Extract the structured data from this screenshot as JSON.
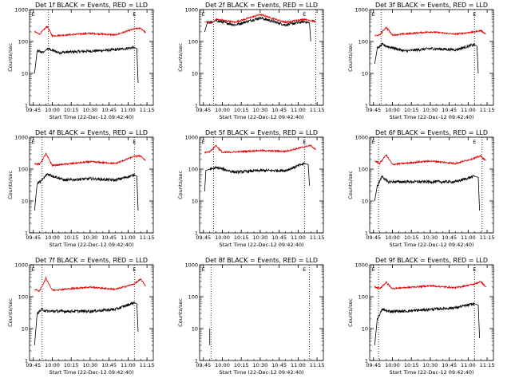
{
  "figure": {
    "background": "#ffffff",
    "colors": {
      "events": "#000000",
      "lld": "#e00000",
      "axes": "#000000"
    }
  },
  "chart_data": [
    {
      "type": "line",
      "title": "Det 1f BLACK = Events, RED = LLD",
      "xlabel": "Start Time (22-Dec-12 09:42:40)",
      "ylabel": "Counts/sec",
      "yscale": "log",
      "ylim": [
        1,
        1000
      ],
      "x_ticks": [
        "09:45",
        "10:00",
        "10:15",
        "10:30",
        "10:45",
        "11:00",
        "11:15"
      ],
      "y_ticks": [
        "1",
        "10",
        "100",
        "1000"
      ],
      "vlines": [
        "09:57",
        "11:05"
      ],
      "markers": [
        "E",
        "E"
      ],
      "series": [
        {
          "x": [
            "09:46",
            "09:48",
            "09:53",
            "09:56",
            "10:05",
            "10:30",
            "10:50",
            "11:05",
            "11:07",
            "11:08"
          ],
          "values": [
            10,
            50,
            45,
            60,
            45,
            50,
            55,
            65,
            60,
            5
          ]
        },
        {
          "x": [
            "09:46",
            "09:50",
            "09:56",
            "10:00",
            "10:30",
            "10:50",
            "11:05",
            "11:10",
            "11:14"
          ],
          "values": [
            200,
            170,
            300,
            150,
            180,
            160,
            250,
            260,
            190
          ]
        }
      ]
    },
    {
      "type": "line",
      "title": "Det 2f BLACK = Events, RED = LLD",
      "xlabel": "Start Time (22-Dec-12 09:42:40)",
      "ylabel": "Counts/sec",
      "yscale": "log",
      "ylim": [
        1,
        1000
      ],
      "x_ticks": [
        "09:45",
        "10:00",
        "10:15",
        "10:30",
        "10:45",
        "11:00",
        "11:15"
      ],
      "y_ticks": [
        "1",
        "10",
        "100",
        "1000"
      ],
      "vlines": [
        "09:53",
        "11:14"
      ],
      "markers": [
        "E",
        "E"
      ],
      "series": [
        {
          "x": [
            "09:46",
            "09:48",
            "09:52",
            "09:55",
            "10:10",
            "10:30",
            "10:50",
            "11:05",
            "11:09",
            "11:10"
          ],
          "values": [
            200,
            380,
            400,
            450,
            330,
            550,
            330,
            420,
            380,
            100
          ]
        },
        {
          "x": [
            "09:46",
            "09:48",
            "09:52",
            "09:55",
            "10:10",
            "10:30",
            "10:50",
            "11:05",
            "11:14"
          ],
          "values": [
            400,
            420,
            380,
            500,
            400,
            700,
            400,
            500,
            420
          ]
        }
      ]
    },
    {
      "type": "line",
      "title": "Det 3f BLACK = Events, RED = LLD",
      "xlabel": "Start Time (22-Dec-12 09:42:40)",
      "ylabel": "Counts/sec",
      "yscale": "log",
      "ylim": [
        1,
        1000
      ],
      "x_ticks": [
        "09:45",
        "10:00",
        "10:15",
        "10:30",
        "10:45",
        "11:00",
        "11:15"
      ],
      "y_ticks": [
        "1",
        "10",
        "100",
        "1000"
      ],
      "vlines": [
        "09:51",
        "11:05"
      ],
      "markers": [
        "E",
        "E"
      ],
      "series": [
        {
          "x": [
            "09:46",
            "09:48",
            "09:52",
            "09:56",
            "10:10",
            "10:30",
            "10:50",
            "11:05",
            "11:07",
            "11:08"
          ],
          "values": [
            20,
            60,
            80,
            70,
            50,
            60,
            55,
            80,
            70,
            10
          ]
        },
        {
          "x": [
            "09:46",
            "09:50",
            "09:55",
            "10:00",
            "10:30",
            "10:50",
            "11:05",
            "11:10",
            "11:14"
          ],
          "values": [
            150,
            160,
            280,
            160,
            200,
            170,
            200,
            220,
            170
          ]
        }
      ]
    },
    {
      "type": "line",
      "title": "Det 4f BLACK = Events, RED = LLD",
      "xlabel": "Start Time (22-Dec-12 09:42:40)",
      "ylabel": "Counts/sec",
      "yscale": "log",
      "ylim": [
        1,
        1000
      ],
      "x_ticks": [
        "09:45",
        "10:00",
        "10:15",
        "10:30",
        "10:45",
        "11:00",
        "11:15"
      ],
      "y_ticks": [
        "1",
        "10",
        "100",
        "1000"
      ],
      "vlines": [
        "09:52",
        "11:05"
      ],
      "markers": [
        "E",
        "E"
      ],
      "series": [
        {
          "x": [
            "09:46",
            "09:48",
            "09:52",
            "09:56",
            "10:10",
            "10:30",
            "10:50",
            "11:05",
            "11:07",
            "11:08"
          ],
          "values": [
            5,
            35,
            45,
            70,
            45,
            50,
            45,
            65,
            60,
            5
          ]
        },
        {
          "x": [
            "09:46",
            "09:50",
            "09:55",
            "10:00",
            "10:30",
            "10:50",
            "11:05",
            "11:10",
            "11:14"
          ],
          "values": [
            150,
            140,
            300,
            130,
            170,
            150,
            250,
            260,
            180
          ]
        }
      ]
    },
    {
      "type": "line",
      "title": "Det 5f BLACK = Events, RED = LLD",
      "xlabel": "Start Time (22-Dec-12 09:42:40)",
      "ylabel": "Counts/sec",
      "yscale": "log",
      "ylim": [
        1,
        1000
      ],
      "x_ticks": [
        "09:45",
        "10:00",
        "10:15",
        "10:30",
        "10:45",
        "11:00",
        "11:15"
      ],
      "y_ticks": [
        "1",
        "10",
        "100",
        "1000"
      ],
      "vlines": [
        "09:53",
        "11:05"
      ],
      "markers": [
        "E",
        "E"
      ],
      "series": [
        {
          "x": [
            "09:46",
            "09:47",
            "09:50",
            "09:56",
            "10:10",
            "10:30",
            "10:50",
            "11:05",
            "11:08",
            "11:09"
          ],
          "values": [
            20,
            90,
            100,
            110,
            80,
            90,
            90,
            150,
            140,
            30
          ]
        },
        {
          "x": [
            "09:46",
            "09:50",
            "09:55",
            "10:00",
            "10:30",
            "10:50",
            "11:05",
            "11:10",
            "11:14"
          ],
          "values": [
            330,
            350,
            550,
            330,
            380,
            360,
            500,
            550,
            400
          ]
        }
      ]
    },
    {
      "type": "line",
      "title": "Det 6f BLACK = Events, RED = LLD",
      "xlabel": "Start Time (22-Dec-12 09:42:40)",
      "ylabel": "Counts/sec",
      "yscale": "log",
      "ylim": [
        1,
        1000
      ],
      "x_ticks": [
        "09:45",
        "10:00",
        "10:15",
        "10:30",
        "10:45",
        "11:00",
        "11:15"
      ],
      "y_ticks": [
        "1",
        "10",
        "100",
        "1000"
      ],
      "vlines": [
        "09:49",
        "11:11"
      ],
      "markers": [
        "E",
        "E"
      ],
      "series": [
        {
          "x": [
            "09:46",
            "09:48",
            "09:52",
            "09:56",
            "10:10",
            "10:30",
            "10:50",
            "11:05",
            "11:08",
            "11:09"
          ],
          "values": [
            10,
            30,
            60,
            40,
            40,
            40,
            40,
            60,
            55,
            5
          ]
        },
        {
          "x": [
            "09:46",
            "09:50",
            "09:55",
            "10:00",
            "10:30",
            "10:50",
            "11:05",
            "11:10",
            "11:14"
          ],
          "values": [
            180,
            150,
            280,
            140,
            180,
            150,
            220,
            260,
            180
          ]
        }
      ]
    },
    {
      "type": "line",
      "title": "Det 7f BLACK = Events, RED = LLD",
      "xlabel": "Start Time (22-Dec-12 09:42:40)",
      "ylabel": "Counts/sec",
      "yscale": "log",
      "ylim": [
        1,
        1000
      ],
      "x_ticks": [
        "09:45",
        "10:00",
        "10:15",
        "10:30",
        "10:45",
        "11:00",
        "11:15"
      ],
      "y_ticks": [
        "1",
        "10",
        "100",
        "1000"
      ],
      "vlines": [
        "09:52",
        "11:05"
      ],
      "markers": [
        "E",
        "E"
      ],
      "series": [
        {
          "x": [
            "09:46",
            "09:48",
            "09:52",
            "09:56",
            "10:10",
            "10:30",
            "10:50",
            "11:05",
            "11:07",
            "11:08"
          ],
          "values": [
            3,
            30,
            40,
            35,
            35,
            35,
            40,
            65,
            60,
            8
          ]
        },
        {
          "x": [
            "09:46",
            "09:50",
            "09:55",
            "10:00",
            "10:30",
            "10:50",
            "11:05",
            "11:10",
            "11:14"
          ],
          "values": [
            170,
            150,
            380,
            160,
            200,
            170,
            250,
            350,
            220
          ]
        }
      ]
    },
    {
      "type": "line",
      "title": "Det 8f BLACK = Events, RED = LLD",
      "xlabel": "Start Time (22-Dec-12 09:42:40)",
      "ylabel": "Counts/sec",
      "yscale": "log",
      "ylim": [
        1,
        1000
      ],
      "x_ticks": [
        "09:45",
        "10:00",
        "10:15",
        "10:30",
        "10:45",
        "11:00",
        "11:15"
      ],
      "y_ticks": [
        "1",
        "10",
        "100",
        "1000"
      ],
      "vlines": [
        "09:51",
        "11:09"
      ],
      "markers": [
        "E",
        "E"
      ],
      "series": [
        {
          "x": [
            "09:50",
            "09:50"
          ],
          "values": [
            3,
            10
          ]
        }
      ]
    },
    {
      "type": "line",
      "title": "Det 9f BLACK = Events, RED = LLD",
      "xlabel": "Start Time (22-Dec-12 09:42:40)",
      "ylabel": "Counts/sec",
      "yscale": "log",
      "ylim": [
        1,
        1000
      ],
      "x_ticks": [
        "09:45",
        "10:00",
        "10:15",
        "10:30",
        "10:45",
        "11:00",
        "11:15"
      ],
      "y_ticks": [
        "1",
        "10",
        "100",
        "1000"
      ],
      "vlines": [
        "09:49",
        "11:05"
      ],
      "markers": [
        "E",
        "E"
      ],
      "series": [
        {
          "x": [
            "09:46",
            "09:48",
            "09:52",
            "09:56",
            "10:10",
            "10:30",
            "10:50",
            "11:05",
            "11:08",
            "11:09"
          ],
          "values": [
            3,
            20,
            40,
            35,
            35,
            40,
            45,
            60,
            55,
            5
          ]
        },
        {
          "x": [
            "09:46",
            "09:50",
            "09:55",
            "10:00",
            "10:30",
            "10:50",
            "11:05",
            "11:10",
            "11:14"
          ],
          "values": [
            200,
            180,
            280,
            180,
            220,
            190,
            250,
            300,
            200
          ]
        }
      ]
    }
  ]
}
